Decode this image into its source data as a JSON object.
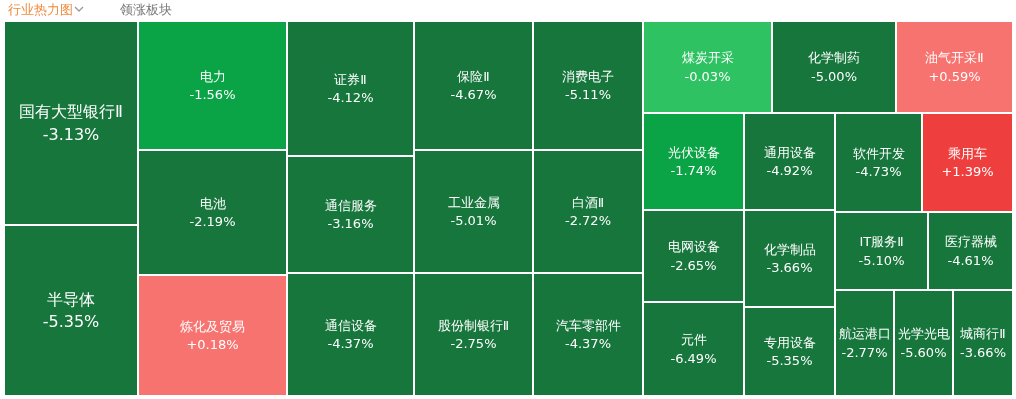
{
  "chart_data": {
    "type": "other",
    "title": "行业热力图",
    "annotations": [
      "领涨板块"
    ],
    "categories": [
      "国有大型银行Ⅱ",
      "半导体",
      "电力",
      "电池",
      "炼化及贸易",
      "证券Ⅱ",
      "通信服务",
      "通信设备",
      "保险Ⅱ",
      "工业金属",
      "股份制银行Ⅱ",
      "消费电子",
      "白酒Ⅱ",
      "汽车零部件",
      "煤炭开采",
      "化学制药",
      "油气开采Ⅱ",
      "光伏设备",
      "电网设备",
      "元件",
      "通用设备",
      "化学制品",
      "专用设备",
      "软件开发",
      "乘用车",
      "IT服务Ⅱ",
      "医疗器械",
      "航运港口",
      "光学光电",
      "城商行Ⅱ"
    ],
    "values": [
      -3.13,
      -5.35,
      -1.56,
      -2.19,
      0.18,
      -4.12,
      -3.16,
      -4.37,
      -4.67,
      -5.01,
      -2.75,
      -5.11,
      -2.72,
      -4.37,
      -0.03,
      -5.0,
      0.59,
      -1.74,
      -2.65,
      -6.49,
      -4.92,
      -3.66,
      -5.35,
      -4.73,
      1.39,
      -5.1,
      -4.61,
      -2.77,
      -5.6,
      -3.66
    ],
    "value_labels": [
      "-3.13%",
      "-5.35%",
      "-1.56%",
      "-2.19%",
      "+0.18%",
      "-4.12%",
      "-3.16%",
      "-4.37%",
      "-4.67%",
      "-5.01%",
      "-2.75%",
      "-5.11%",
      "-2.72%",
      "-4.37%",
      "-0.03%",
      "-5.00%",
      "+0.59%",
      "-1.74%",
      "-2.65%",
      "-6.49%",
      "-4.92%",
      "-3.66%",
      "-5.35%",
      "-4.73%",
      "+1.39%",
      "-5.10%",
      "-4.61%",
      "-2.77%",
      "-5.60%",
      "-3.66%"
    ]
  }
}
